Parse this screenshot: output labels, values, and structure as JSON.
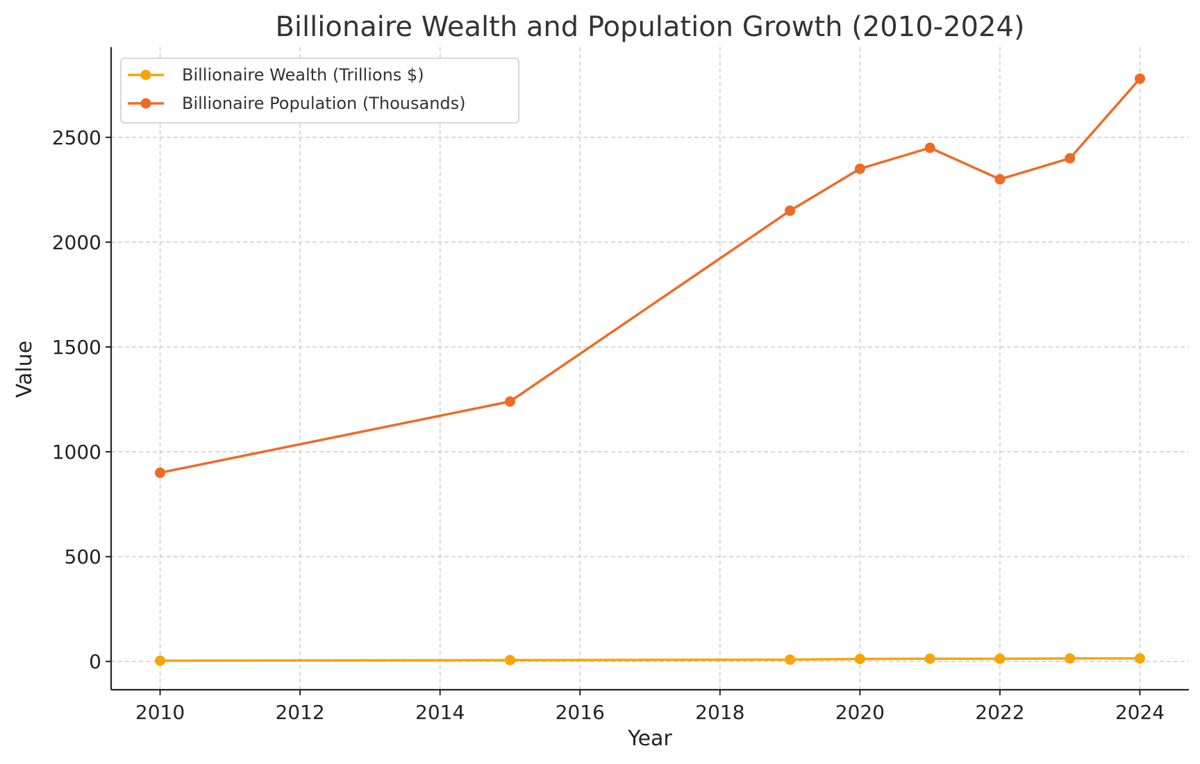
{
  "chart_data": {
    "type": "line",
    "title": "Billionaire Wealth and Population Growth (2010-2024)",
    "xlabel": "Year",
    "ylabel": "Value",
    "x": [
      2010,
      2015,
      2019,
      2020,
      2021,
      2022,
      2023,
      2024
    ],
    "xlim": [
      2009.3,
      2024.7
    ],
    "ylim": [
      -135,
      2930
    ],
    "xticks": [
      2010,
      2012,
      2014,
      2016,
      2018,
      2020,
      2022,
      2024
    ],
    "yticks": [
      0,
      500,
      1000,
      1500,
      2000,
      2500
    ],
    "grid": true,
    "legend_position": "top-left",
    "series": [
      {
        "name": "Billionaire Wealth (Trillions $)",
        "color": "#F5A50A",
        "values": [
          3.6,
          6.4,
          8.7,
          11.9,
          13.1,
          12.7,
          14.2,
          14.2
        ]
      },
      {
        "name": "Billionaire Population (Thousands)",
        "color": "#EF6A24",
        "values": [
          900,
          1240,
          2150,
          2350,
          2450,
          2300,
          2400,
          2780
        ]
      }
    ]
  }
}
